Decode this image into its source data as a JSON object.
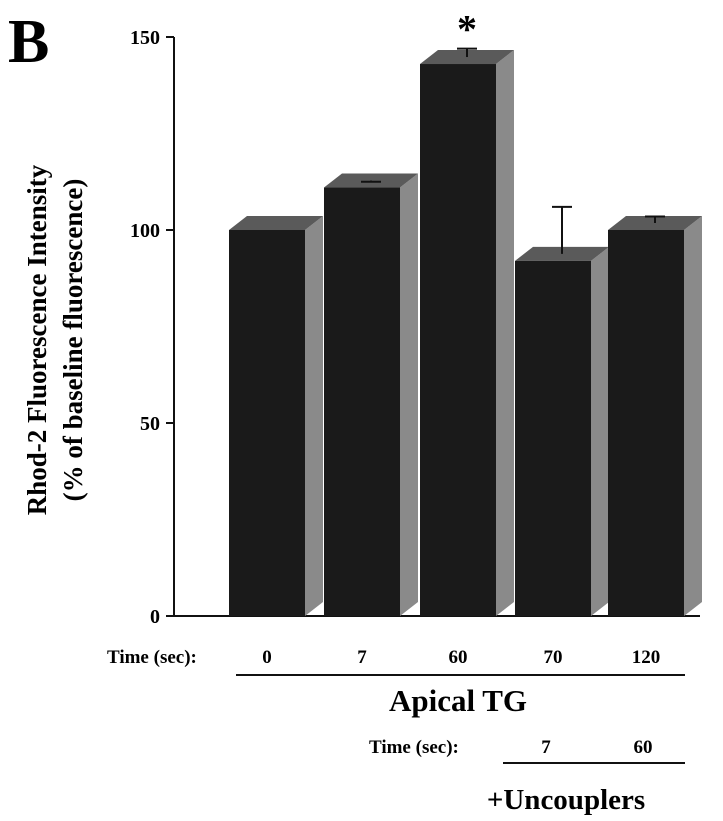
{
  "panel_label": "B",
  "chart_data": {
    "type": "bar",
    "style": "3d-bar",
    "title": "",
    "ylabel_line1": "Rhod-2 Fluorescence Intensity",
    "ylabel_line2": "(% of baseline fluorescence)",
    "ylim": [
      0,
      150
    ],
    "yticks": [
      0,
      50,
      100,
      150
    ],
    "categories": [
      "0",
      "7",
      "60",
      "70",
      "120"
    ],
    "values": [
      100,
      111,
      143,
      92,
      100
    ],
    "error_upper": [
      0,
      1.5,
      4,
      14,
      3.5
    ],
    "annotations": [
      {
        "category_index": 2,
        "text": "*"
      }
    ],
    "time_row_label": "Time (sec):",
    "group1_label": "Apical TG",
    "uncoupler_time_label": "Time (sec):",
    "uncoupler_times": [
      "7",
      "60"
    ],
    "group2_label": "+Uncouplers",
    "colors": {
      "bar_front": "#1a1a1a",
      "bar_side": "#8a8a8a",
      "bar_top": "#5a5a5a"
    },
    "grid": false,
    "legend": "none"
  }
}
